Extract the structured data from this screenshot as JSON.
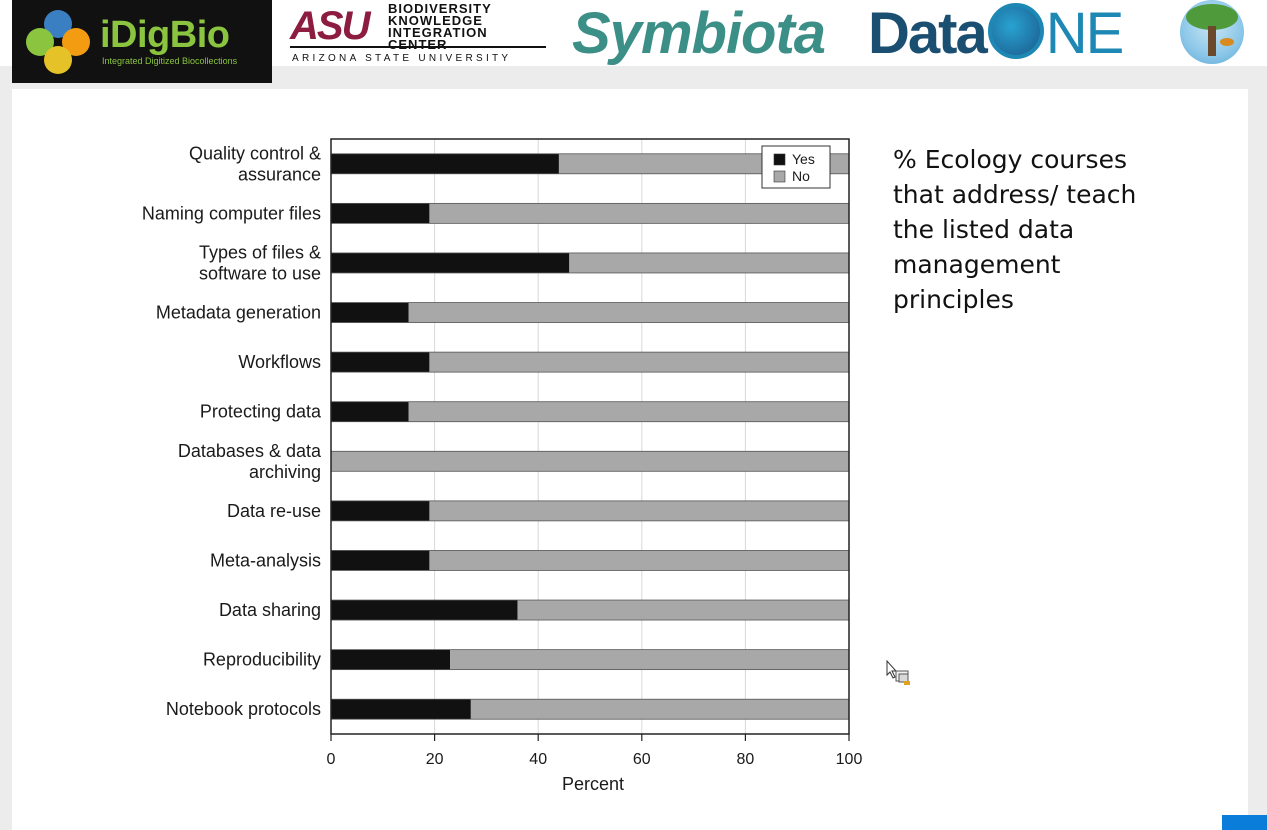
{
  "logos": {
    "idigbio": {
      "name": "iDigBio",
      "tagline": "Integrated Digitized Biocollections"
    },
    "asu": {
      "mark": "ASU",
      "lines": [
        "BIODIVERSITY",
        "KNOWLEDGE",
        "INTEGRATION CENTER"
      ],
      "university": "ARIZONA STATE UNIVERSITY"
    },
    "symbiota": "Symbiota",
    "dataone": {
      "prefix": "Data",
      "suffix": "NE"
    }
  },
  "caption": {
    "lines": [
      "% Ecology courses",
      "that address/ teach",
      "the listed data",
      "management",
      "principles"
    ]
  },
  "colors": {
    "yes": "#111111",
    "no": "#a8a8a8",
    "grid": "#d8d8d8",
    "frame": "#222222"
  },
  "chart_data": {
    "type": "bar",
    "orientation": "horizontal",
    "stacked": true,
    "categories": [
      [
        "Quality control &",
        "assurance"
      ],
      [
        "Naming computer files"
      ],
      [
        "Types of files &",
        "software to use"
      ],
      [
        "Metadata generation"
      ],
      [
        "Workflows"
      ],
      [
        "Protecting data"
      ],
      [
        "Databases & data",
        "archiving"
      ],
      [
        "Data re-use"
      ],
      [
        "Meta-analysis"
      ],
      [
        "Data sharing"
      ],
      [
        "Reproducibility"
      ],
      [
        "Notebook protocols"
      ]
    ],
    "series": [
      {
        "name": "Yes",
        "color": "#111111",
        "values": [
          44,
          19,
          46,
          15,
          19,
          15,
          0,
          19,
          19,
          36,
          23,
          27
        ]
      },
      {
        "name": "No",
        "color": "#a8a8a8",
        "values": [
          56,
          81,
          54,
          85,
          81,
          85,
          100,
          81,
          81,
          64,
          77,
          73
        ]
      }
    ],
    "xlabel": "Percent",
    "xlim": [
      0,
      100
    ],
    "xticks": [
      0,
      20,
      40,
      60,
      80,
      100
    ],
    "grid": true,
    "legend": "top-right"
  }
}
